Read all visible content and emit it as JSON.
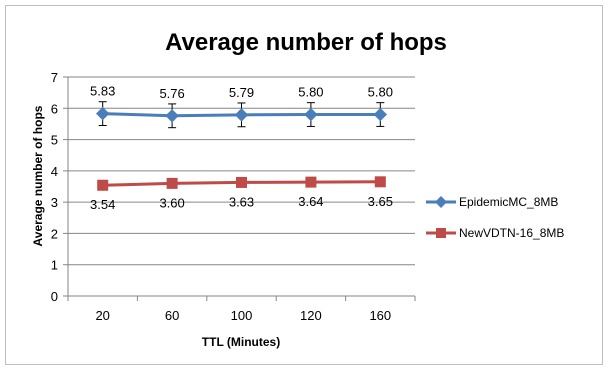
{
  "chart_data": {
    "type": "line",
    "title": "Average number of hops",
    "xlabel": "TTL (Minutes)",
    "ylabel": "Average number of hops",
    "categories": [
      "20",
      "60",
      "100",
      "120",
      "160"
    ],
    "ylim": [
      0,
      7
    ],
    "yticks": [
      "0",
      "1",
      "2",
      "3",
      "4",
      "5",
      "6",
      "7"
    ],
    "grid": "horizontal",
    "legend_position": "right",
    "series": [
      {
        "name": "EpidemicMC_8MB",
        "values": [
          5.83,
          5.76,
          5.79,
          5.8,
          5.8
        ],
        "labels": [
          "5.83",
          "5.76",
          "5.79",
          "5.80",
          "5.80"
        ],
        "error": [
          0.38,
          0.38,
          0.38,
          0.38,
          0.38
        ],
        "color": "#4a7ebb",
        "marker": "diamond",
        "label_position": "above"
      },
      {
        "name": "NewVDTN-16_8MB",
        "values": [
          3.54,
          3.6,
          3.63,
          3.64,
          3.65
        ],
        "labels": [
          "3.54",
          "3.60",
          "3.63",
          "3.64",
          "3.65"
        ],
        "error": [
          0.15,
          0.05,
          0.05,
          0.05,
          0.05
        ],
        "color": "#be4b48",
        "marker": "square",
        "label_position": "below"
      }
    ]
  }
}
